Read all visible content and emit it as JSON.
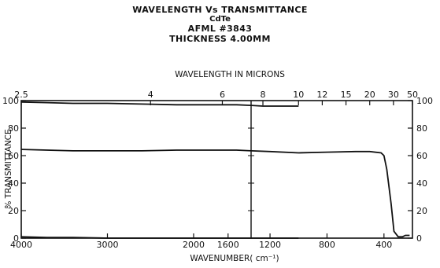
{
  "chart_data": {
    "type": "line",
    "title": "WAVELENGTH Vs TRANSMITTANCE",
    "material": "CdTe",
    "sample_id": "AFML #3843",
    "thickness": "THICKNESS 4.00MM",
    "top_axis_label": "WAVELENGTH IN MICRONS",
    "xlabel": "WAVENUMBER( cm⁻¹)",
    "ylabel": "% TRANSMITTANCE",
    "ylim": [
      0,
      100
    ],
    "y_ticks": [
      0,
      20,
      40,
      60,
      80,
      100
    ],
    "y_tick_labels": [
      "0",
      "20",
      "40",
      "60",
      "80",
      "100"
    ],
    "x_left_panel": {
      "range": [
        4000,
        1333
      ],
      "ticks": [
        4000,
        3000,
        2000,
        1600
      ],
      "tick_labels": [
        "4000",
        "3000",
        "2000",
        "1600"
      ]
    },
    "x_right_panel": {
      "range": [
        1333,
        200
      ],
      "ticks": [
        1200,
        800,
        400
      ],
      "tick_labels": [
        "1200",
        "800",
        "400"
      ]
    },
    "top_ticks_microns": [
      2.5,
      4,
      6,
      8,
      10,
      12,
      15,
      20,
      30,
      50
    ],
    "top_tick_labels": [
      "2.5",
      "4",
      "6",
      "8",
      "10",
      "12",
      "15",
      "20",
      "30",
      "50"
    ],
    "series": [
      {
        "x": [
          4000,
          3700,
          3400,
          3000,
          2600,
          2200,
          1800,
          1500,
          1333,
          1250,
          1100,
          1000
        ],
        "y": [
          99,
          98.5,
          98,
          98,
          97.5,
          97,
          97,
          97,
          96.5,
          96,
          96,
          96
        ]
      },
      {
        "x": [
          4000,
          3700,
          3400,
          3000,
          2600,
          2200,
          1800,
          1500,
          1333,
          1200,
          1000,
          800,
          600,
          500,
          420,
          400,
          380,
          350,
          330,
          300,
          270,
          250,
          220
        ],
        "y": [
          64.5,
          64,
          63.5,
          63.5,
          63.5,
          64,
          64,
          64,
          63.5,
          63,
          62,
          62.5,
          63,
          63,
          62,
          60,
          50,
          25,
          5,
          1,
          1,
          2,
          2
        ]
      },
      {
        "x": [
          4000,
          3700,
          3400,
          3000,
          2600,
          2200,
          1800,
          1500,
          1333,
          1100,
          1000
        ],
        "y": [
          1,
          0.5,
          0.5,
          0,
          0,
          0,
          0,
          0,
          0,
          0,
          0
        ]
      }
    ]
  }
}
